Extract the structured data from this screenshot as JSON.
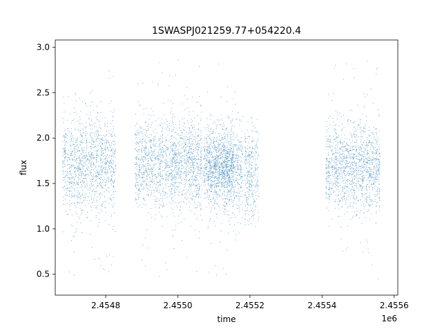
{
  "chart_data": {
    "type": "scatter",
    "title": "1SWASPJ021259.77+054220.4",
    "xlabel": "time",
    "ylabel": "flux",
    "x_offset_label": "1e6",
    "xlim": [
      2454660,
      2455610
    ],
    "ylim": [
      0.27,
      3.08
    ],
    "x_ticks": [
      2454800,
      2455000,
      2455200,
      2455400,
      2455600
    ],
    "x_tick_labels": [
      "2.4548",
      "2.4550",
      "2.4552",
      "2.4554",
      "2.4556"
    ],
    "y_ticks": [
      0.5,
      1.0,
      1.5,
      2.0,
      2.5,
      3.0
    ],
    "y_tick_labels": [
      "0.5",
      "1.0",
      "1.5",
      "2.0",
      "2.5",
      "3.0"
    ],
    "grid": false,
    "marker_color": "#1f77b4",
    "series": [
      {
        "segments": [
          {
            "x_range": [
              2454680,
              2454828
            ],
            "median_flux": 1.72,
            "spread": 0.26,
            "min": 0.45,
            "max": 2.8
          },
          {
            "x_range": [
              2454880,
              2455068
            ],
            "median_flux": 1.72,
            "spread": 0.25,
            "min": 0.45,
            "max": 2.87
          },
          {
            "x_range": [
              2455070,
              2455155
            ],
            "median_flux": 1.7,
            "spread": 0.18,
            "min": 0.9,
            "max": 2.3
          },
          {
            "x_range": [
              2455080,
              2455180
            ],
            "median_flux": 1.66,
            "spread": 0.25,
            "min": 0.45,
            "max": 2.85
          },
          {
            "x_range": [
              2455185,
              2455225
            ],
            "median_flux": 1.6,
            "spread": 0.28,
            "min": 1.0,
            "max": 2.28
          },
          {
            "x_range": [
              2455410,
              2455560
            ],
            "median_flux": 1.68,
            "spread": 0.24,
            "min": 0.42,
            "max": 2.97
          }
        ]
      }
    ]
  }
}
